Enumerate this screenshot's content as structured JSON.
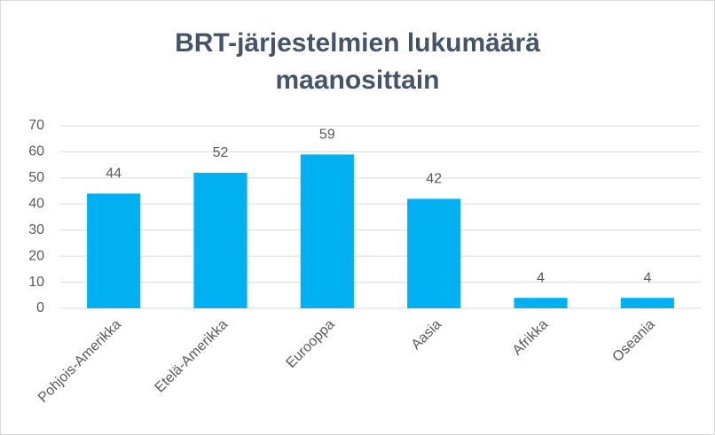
{
  "chart_data": {
    "type": "bar",
    "title": "BRT-järjestelmien lukumäärä maanosittain",
    "categories": [
      "Pohjois-Amerikka",
      "Etelä-Amerikka",
      "Eurooppa",
      "Aasia",
      "Afrikka",
      "Oseania"
    ],
    "values": [
      44,
      52,
      59,
      42,
      4,
      4
    ],
    "color": "#00b0f0",
    "ylim": [
      0,
      70
    ],
    "yticks": [
      0,
      10,
      20,
      30,
      40,
      50,
      60,
      70
    ],
    "grid": true,
    "data_labels": true
  }
}
